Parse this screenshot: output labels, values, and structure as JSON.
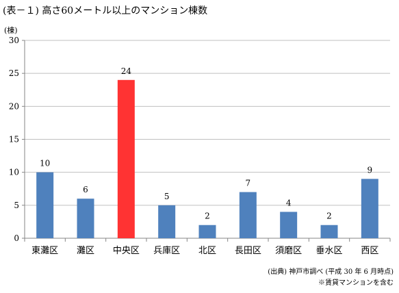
{
  "title": "(表－１) 高さ60メートル以上のマンション棟数",
  "chart_data": {
    "type": "bar",
    "unit_label": "(棟)",
    "categories": [
      "東灘区",
      "灘区",
      "中央区",
      "兵庫区",
      "北区",
      "長田区",
      "須磨区",
      "垂水区",
      "西区"
    ],
    "values": [
      10,
      6,
      24,
      5,
      2,
      7,
      4,
      2,
      9
    ],
    "highlight": "中央区",
    "colors": {
      "bar": "#4f81bd",
      "highlight": "#ff3333",
      "grid": "#bfbfbf",
      "axis": "#868686"
    },
    "ylim": [
      0,
      30
    ],
    "yticks": [
      0,
      5,
      10,
      15,
      20,
      25,
      30
    ],
    "grid": true,
    "legend": "none"
  },
  "notes": [
    "(出典) 神戸市調べ (平成 30 年 6 月時点)",
    "※賃貸マンションを含む"
  ]
}
